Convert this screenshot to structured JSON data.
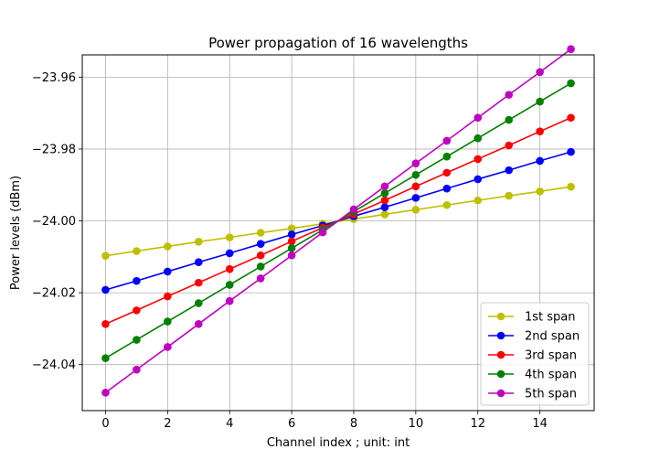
{
  "chart_data": {
    "type": "line",
    "title": "Power propagation of 16 wavelengths",
    "xlabel": "Channel index ; unit: int",
    "ylabel": "Power levels (dBm)",
    "x": [
      0,
      1,
      2,
      3,
      4,
      5,
      6,
      7,
      8,
      9,
      10,
      11,
      12,
      13,
      14,
      15
    ],
    "xlim": [
      -0.75,
      15.75
    ],
    "ylim": [
      -24.0528,
      -23.9538
    ],
    "xticks": [
      0,
      2,
      4,
      6,
      8,
      10,
      12,
      14
    ],
    "xtick_labels": [
      "0",
      "2",
      "4",
      "6",
      "8",
      "10",
      "12",
      "14"
    ],
    "yticks": [
      -24.04,
      -24.02,
      -24.0,
      -23.98,
      -23.96
    ],
    "ytick_labels": [
      "−24.04",
      "−24.02",
      "−24.00",
      "−23.98",
      "−23.96"
    ],
    "grid": true,
    "legend_position": "lower-right",
    "series": [
      {
        "name": "1st span",
        "color": "#bfbf00",
        "values": [
          -24.0097,
          -24.0084,
          -24.0071,
          -24.0058,
          -24.0046,
          -24.0033,
          -24.0021,
          -24.0008,
          -23.9995,
          -23.9982,
          -23.9969,
          -23.9956,
          -23.9943,
          -23.993,
          -23.9918,
          -23.9905
        ]
      },
      {
        "name": "2nd span",
        "color": "#0000ff",
        "values": [
          -24.0192,
          -24.0167,
          -24.0141,
          -24.0115,
          -24.009,
          -24.0064,
          -24.0038,
          -24.0013,
          -23.9987,
          -23.9962,
          -23.9936,
          -23.991,
          -23.9884,
          -23.9859,
          -23.9833,
          -23.9808
        ]
      },
      {
        "name": "3rd span",
        "color": "#ff0000",
        "values": [
          -24.0287,
          -24.0249,
          -24.021,
          -24.0172,
          -24.0134,
          -24.0096,
          -24.0057,
          -24.0019,
          -23.9981,
          -23.9943,
          -23.9904,
          -23.9866,
          -23.9828,
          -23.979,
          -23.9751,
          -23.9713
        ]
      },
      {
        "name": "4th span",
        "color": "#008000",
        "values": [
          -24.0382,
          -24.0331,
          -24.028,
          -24.0229,
          -24.0178,
          -24.0127,
          -24.0076,
          -24.0025,
          -23.9974,
          -23.9923,
          -23.9872,
          -23.9821,
          -23.977,
          -23.9719,
          -23.9668,
          -23.9617
        ]
      },
      {
        "name": "5th span",
        "color": "#bf00bf",
        "values": [
          -24.0478,
          -24.0414,
          -24.0351,
          -24.0287,
          -24.0223,
          -24.016,
          -24.0096,
          -24.0032,
          -23.9968,
          -23.9904,
          -23.984,
          -23.9777,
          -23.9713,
          -23.9649,
          -23.9586,
          -23.9522
        ]
      }
    ]
  }
}
